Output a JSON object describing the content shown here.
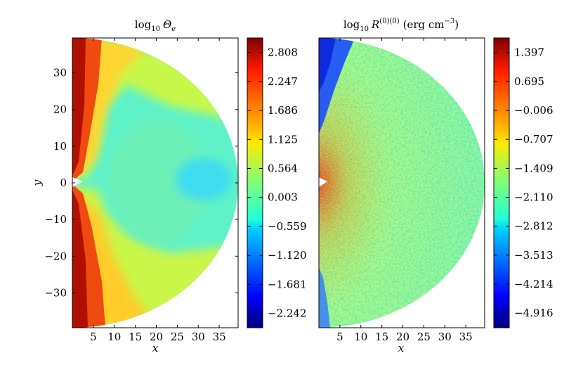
{
  "chart_data": [
    {
      "type": "heatmap",
      "title": "log10 Θe",
      "title_parts": {
        "base": "log",
        "sub": "10",
        "symbol": "Θ",
        "symbol_sub": "e"
      },
      "xlabel": "x",
      "ylabel": "y",
      "xlim": [
        0,
        39.5
      ],
      "ylim": [
        -39.5,
        39.5
      ],
      "xticks": [
        5,
        10,
        15,
        20,
        25,
        30,
        35
      ],
      "yticks": [
        30,
        20,
        10,
        0,
        -10,
        -20,
        -30
      ],
      "ytick_labels": [
        "30",
        "20",
        "10",
        "0",
        "−10",
        "−20",
        "−30"
      ],
      "domain": "half-disk r ≤ 39.5",
      "colorbar": {
        "colormap": "jet",
        "range": [
          -2.52,
          3.09
        ],
        "ticks": [
          2.808,
          2.247,
          1.686,
          1.125,
          0.564,
          0.003,
          -0.559,
          -1.12,
          -1.681,
          -2.242
        ],
        "tick_labels": [
          "2.808",
          "2.247",
          "1.686",
          "1.125",
          "0.564",
          "0.003",
          "−0.559",
          "−1.120",
          "−1.681",
          "−2.242"
        ]
      }
    },
    {
      "type": "heatmap",
      "title": "log10 R(0)(0) (erg cm−3)",
      "title_parts": {
        "base": "log",
        "sub": "10",
        "symbol": "R",
        "sup": "(0)(0)",
        "unit_pre": "(erg cm",
        "unit_sup": "−3",
        "unit_post": ")"
      },
      "xlabel": "x",
      "ylabel": "",
      "xlim": [
        0,
        39.5
      ],
      "ylim": [
        -39.5,
        39.5
      ],
      "xticks": [
        5,
        10,
        15,
        20,
        25,
        30,
        35
      ],
      "domain": "half-disk r ≤ 39.5",
      "colorbar": {
        "colormap": "jet",
        "range": [
          -5.27,
          1.75
        ],
        "ticks": [
          1.397,
          0.695,
          -0.006,
          -0.707,
          -1.409,
          -2.11,
          -2.812,
          -3.513,
          -4.214,
          -4.916
        ],
        "tick_labels": [
          "1.397",
          "0.695",
          "−0.006",
          "−0.707",
          "−1.409",
          "−2.110",
          "−2.812",
          "−3.513",
          "−4.214",
          "−4.916"
        ]
      }
    }
  ]
}
